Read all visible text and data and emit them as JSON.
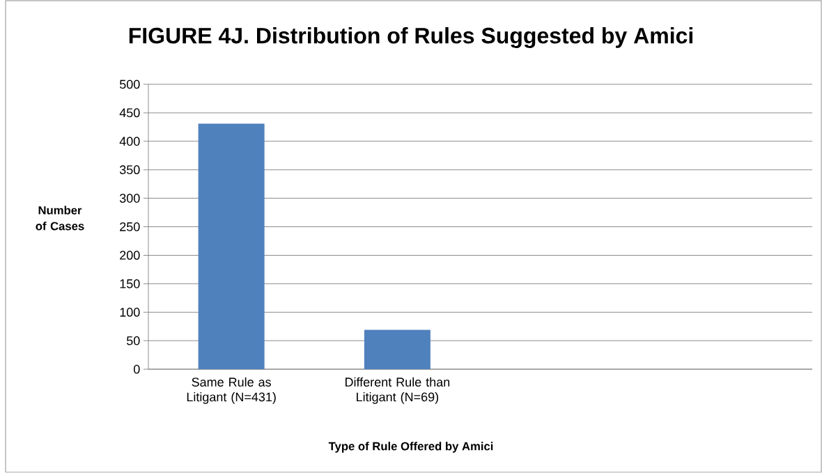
{
  "chart_data": {
    "type": "bar",
    "title": "FIGURE 4J. Distribution of Rules Suggested by Amici",
    "xlabel": "Type of Rule Offered by Amici",
    "ylabel": "Number of Cases",
    "categories": [
      "Same Rule as Litigant (N=431)",
      "Different Rule than Litigant (N=69)",
      null,
      null
    ],
    "values": [
      431,
      69,
      null,
      null
    ],
    "color": "#4f81bd",
    "ylim": [
      0,
      500
    ],
    "yticks": [
      0,
      50,
      100,
      150,
      200,
      250,
      300,
      350,
      400,
      450,
      500
    ],
    "grid": "y"
  }
}
